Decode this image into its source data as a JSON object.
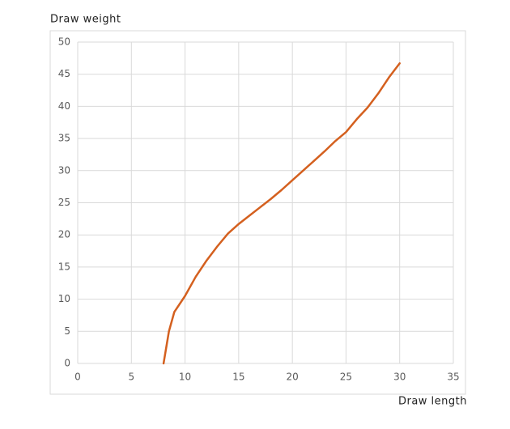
{
  "chart_data": {
    "type": "line",
    "y_label": "Draw weight",
    "x_label": "Draw length",
    "x": [
      8,
      8.5,
      9,
      10,
      11,
      12,
      13,
      14,
      15,
      16,
      17,
      18,
      19,
      20,
      21,
      22,
      23,
      24,
      25,
      26,
      27,
      28,
      29,
      30
    ],
    "series": [
      {
        "name": "Draw weight",
        "color": "#d4601f",
        "values": [
          0,
          5,
          8,
          10.5,
          13.5,
          16,
          18.2,
          20.2,
          21.7,
          23,
          24.3,
          25.6,
          27,
          28.5,
          30,
          31.5,
          33,
          34.6,
          36,
          38,
          39.8,
          42,
          44.5,
          46.7
        ]
      }
    ],
    "xlim": [
      0,
      35
    ],
    "xticks": [
      0,
      5,
      10,
      15,
      20,
      25,
      30,
      35
    ],
    "ylim": [
      0,
      50
    ],
    "yticks": [
      0,
      5,
      10,
      15,
      20,
      25,
      30,
      35,
      40,
      45,
      50
    ],
    "grid": true
  }
}
